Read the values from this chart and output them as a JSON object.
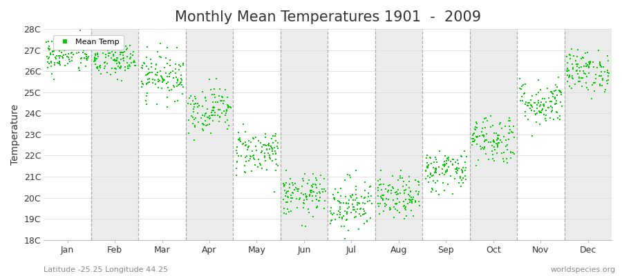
{
  "title": "Monthly Mean Temperatures 1901  -  2009",
  "ylabel": "Temperature",
  "ylim": [
    18,
    28
  ],
  "yticks": [
    18,
    19,
    20,
    21,
    22,
    23,
    24,
    25,
    26,
    27,
    28
  ],
  "ytick_labels": [
    "18C",
    "19C",
    "20C",
    "21C",
    "22C",
    "23C",
    "24C",
    "25C",
    "26C",
    "27C",
    "28C"
  ],
  "months": [
    "Jan",
    "Feb",
    "Mar",
    "Apr",
    "May",
    "Jun",
    "Jul",
    "Aug",
    "Sep",
    "Oct",
    "Nov",
    "Dec"
  ],
  "dot_color": "#00CC00",
  "bg_color": "#FFFFFF",
  "band_color_odd": "#EBEBEB",
  "band_color_even": "#F5F5F5",
  "grid_color": "#999999",
  "title_fontsize": 15,
  "legend_label": "Mean Temp",
  "footer_left": "Latitude -25.25 Longitude 44.25",
  "footer_right": "worldspecies.org",
  "mean_temps": [
    26.8,
    26.5,
    25.8,
    24.2,
    22.2,
    20.1,
    19.7,
    20.0,
    21.3,
    22.8,
    24.5,
    26.0
  ],
  "std_temps": [
    0.45,
    0.45,
    0.55,
    0.55,
    0.55,
    0.5,
    0.65,
    0.5,
    0.5,
    0.6,
    0.55,
    0.5
  ],
  "n_years": 109,
  "seed": 42,
  "marker_size": 3,
  "footer_fontsize": 8,
  "tick_fontsize": 9,
  "ylabel_fontsize": 10
}
